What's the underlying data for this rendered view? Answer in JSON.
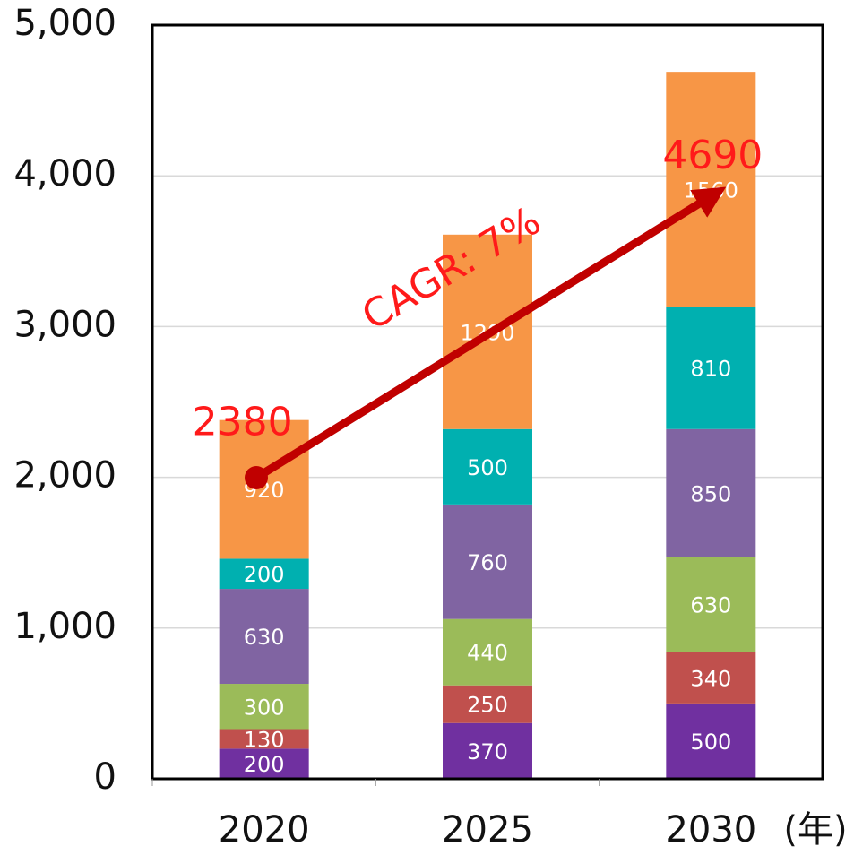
{
  "chart_data": {
    "type": "stacked_bar",
    "categories": [
      "2020",
      "2025",
      "2030"
    ],
    "x_unit_label": "(年)",
    "series": [
      {
        "color": "#7030a0",
        "values": [
          200,
          370,
          500
        ]
      },
      {
        "color": "#c0504d",
        "values": [
          130,
          250,
          340
        ]
      },
      {
        "color": "#9bbb59",
        "values": [
          300,
          440,
          630
        ]
      },
      {
        "color": "#8064a2",
        "values": [
          630,
          760,
          850
        ]
      },
      {
        "color": "#00b0b0",
        "values": [
          200,
          500,
          810
        ]
      },
      {
        "color": "#f79646",
        "values": [
          920,
          1290,
          1560
        ]
      }
    ],
    "ylim": [
      0,
      5000
    ],
    "yticks": [
      0,
      {
        "value": 1000,
        "label": "1,000"
      },
      {
        "value": 2000,
        "label": "2,000"
      },
      {
        "value": 3000,
        "label": "3,000"
      },
      {
        "value": 4000,
        "label": "4,000"
      },
      {
        "value": 5000,
        "label": "5,000"
      }
    ],
    "grid": true,
    "annotations": [
      {
        "text": "2380"
      },
      {
        "text": "4690"
      },
      {
        "text": "CAGR: 7%"
      }
    ]
  }
}
